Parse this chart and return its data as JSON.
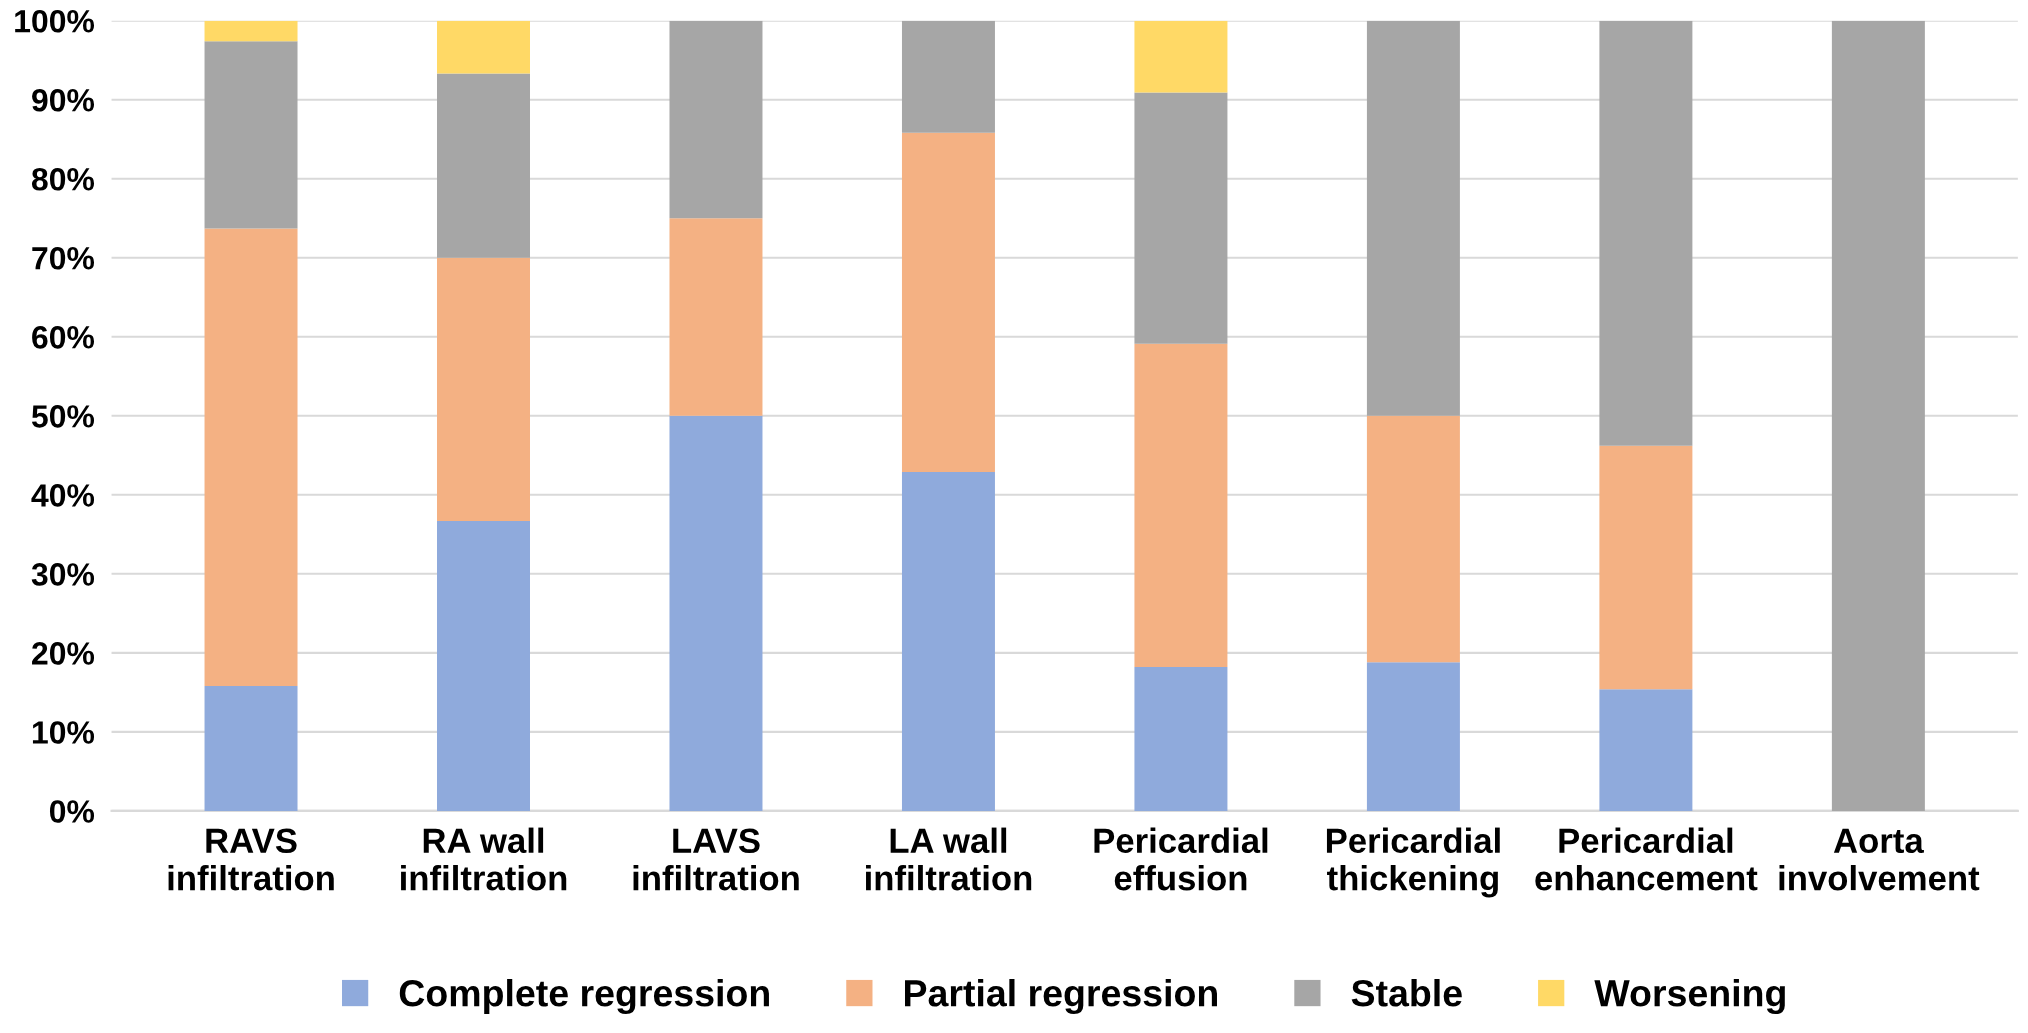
{
  "chart_data": {
    "type": "bar",
    "stacked": true,
    "categories": [
      "RAVS\ninfiltration",
      "RA wall\ninfiltration",
      "LAVS\ninfiltration",
      "LA wall\ninfiltration",
      "Pericardial\neffusion",
      "Pericardial\nthickening",
      "Pericardial\nenhancement",
      "Aorta\ninvolvement"
    ],
    "series": [
      {
        "name": "Complete regression",
        "color": "#8faadc",
        "values": [
          15.8,
          36.7,
          50,
          42.9,
          18.2,
          18.8,
          15.4,
          0
        ]
      },
      {
        "name": "Partial regression",
        "color": "#f4b183",
        "values": [
          57.9,
          33.3,
          25,
          42.9,
          40.9,
          31.2,
          30.8,
          0
        ]
      },
      {
        "name": "Stable",
        "color": "#a6a6a6",
        "values": [
          23.7,
          23.3,
          25,
          14.2,
          31.8,
          50,
          53.8,
          100
        ]
      },
      {
        "name": "Worsening",
        "color": "#ffd966",
        "values": [
          2.6,
          6.7,
          0,
          0,
          9.1,
          0,
          0,
          0
        ]
      }
    ],
    "ylim": [
      0,
      100
    ],
    "yticks": [
      {
        "value": 0,
        "label": "0%"
      },
      {
        "value": 10,
        "label": "10%"
      },
      {
        "value": 20,
        "label": "20%"
      },
      {
        "value": 30,
        "label": "30%"
      },
      {
        "value": 40,
        "label": "40%"
      },
      {
        "value": 50,
        "label": "50%"
      },
      {
        "value": 60,
        "label": "60%"
      },
      {
        "value": 70,
        "label": "70%"
      },
      {
        "value": 80,
        "label": "80%"
      },
      {
        "value": 90,
        "label": "90%"
      },
      {
        "value": 100,
        "label": "100%"
      }
    ],
    "grid": "y",
    "legend": "bottom"
  }
}
